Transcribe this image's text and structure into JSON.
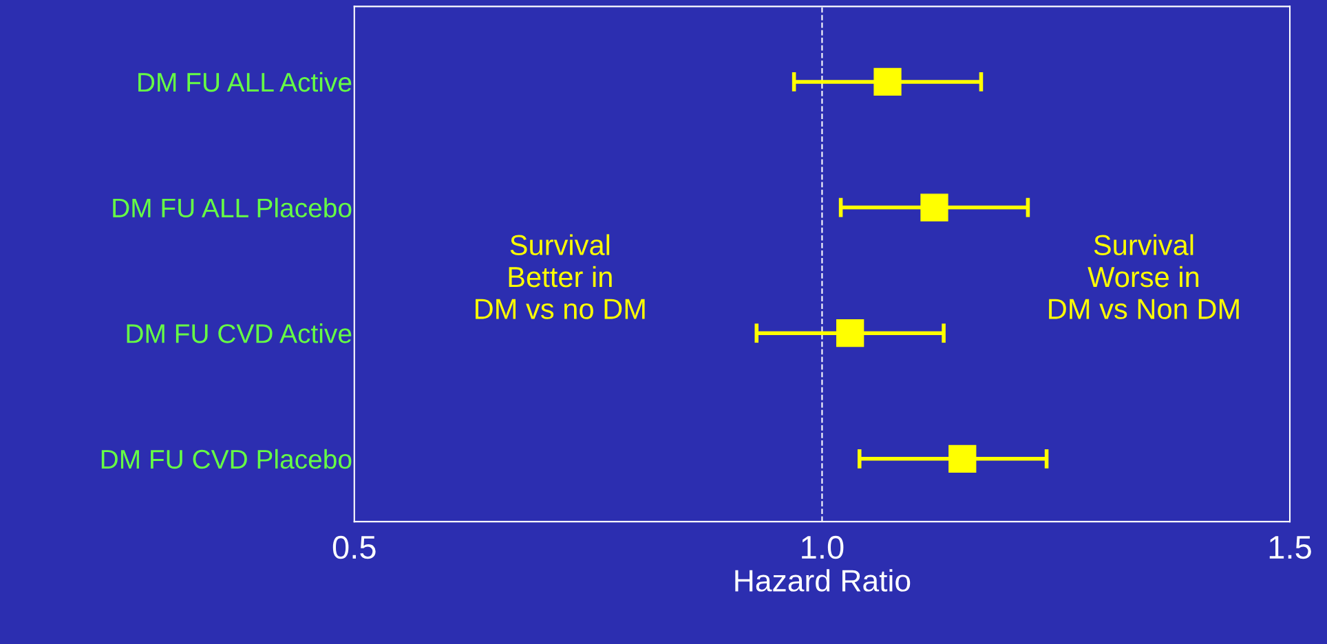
{
  "chart_data": {
    "type": "scatter",
    "orientation": "horizontal",
    "xlabel": "Hazard Ratio",
    "categories": [
      "DM FU ALL Active",
      "DM FU ALL Placebo",
      "DM FU CVD Active",
      "DM FU CVD Placebo"
    ],
    "values": [
      1.07,
      1.12,
      1.03,
      1.15
    ],
    "errors": [
      [
        0.97,
        1.17
      ],
      [
        1.02,
        1.22
      ],
      [
        0.93,
        1.13
      ],
      [
        1.04,
        1.24
      ]
    ],
    "color": "#ffff00",
    "marker": "square",
    "xlim": [
      0.5,
      1.5
    ],
    "xticks": [
      0.5,
      {
        "value": 1,
        "label": "1.0"
      },
      1.5
    ],
    "ref_lines": [
      {
        "axis": "x",
        "value": 1,
        "color": "#ffffff",
        "line_style": "dashed"
      }
    ],
    "annotations": [
      "Survival\nBetter in\nDM vs no DM",
      "Survival\nWorse in\nDM vs Non DM"
    ],
    "grid": false,
    "legend": false
  }
}
